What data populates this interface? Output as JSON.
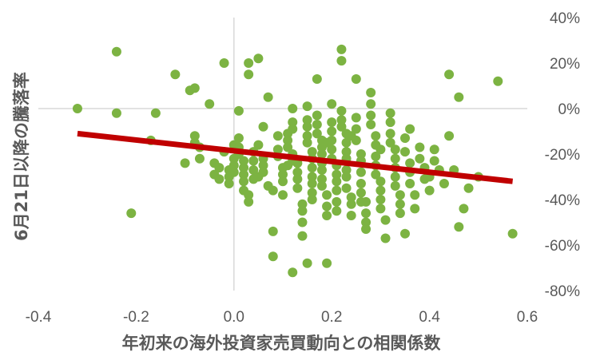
{
  "chart_data": {
    "type": "scatter",
    "xlabel": "年初来の海外投資家売買動向との相関係数",
    "ylabel": "6月21日以降の騰落率",
    "xlim": [
      -0.4,
      0.6
    ],
    "ylim": [
      -0.8,
      0.4
    ],
    "x_ticks": [
      "-0.4",
      "-0.2",
      "0.0",
      "0.2",
      "0.4",
      "0.6"
    ],
    "y_ticks": [
      "40%",
      "20%",
      "0%",
      "-20%",
      "-40%",
      "-60%",
      "-80%"
    ],
    "grid": false,
    "legend": "none",
    "colors": {
      "points": "#7cb342",
      "trend": "#c00000",
      "axis": "#d9d9d9"
    },
    "trend_line": {
      "x": [
        -0.32,
        0.57
      ],
      "y": [
        -0.11,
        -0.32
      ]
    },
    "points": [
      [
        -0.32,
        0.0
      ],
      [
        -0.24,
        0.25
      ],
      [
        -0.24,
        -0.02
      ],
      [
        -0.21,
        -0.46
      ],
      [
        -0.17,
        -0.14
      ],
      [
        -0.16,
        -0.02
      ],
      [
        -0.12,
        0.15
      ],
      [
        -0.1,
        -0.24
      ],
      [
        -0.09,
        0.08
      ],
      [
        -0.08,
        0.09
      ],
      [
        -0.08,
        -0.12
      ],
      [
        -0.08,
        -0.15
      ],
      [
        -0.07,
        -0.17
      ],
      [
        -0.07,
        -0.22
      ],
      [
        -0.05,
        0.02
      ],
      [
        -0.04,
        -0.24
      ],
      [
        -0.04,
        -0.29
      ],
      [
        -0.03,
        -0.26
      ],
      [
        -0.03,
        -0.31
      ],
      [
        -0.02,
        0.2
      ],
      [
        -0.02,
        -0.19
      ],
      [
        -0.01,
        -0.27
      ],
      [
        -0.01,
        -0.3
      ],
      [
        -0.01,
        -0.33
      ],
      [
        0.0,
        -0.16
      ],
      [
        0.0,
        -0.22
      ],
      [
        0.0,
        -0.25
      ],
      [
        0.0,
        -0.28
      ],
      [
        0.01,
        -0.01
      ],
      [
        0.01,
        -0.13
      ],
      [
        0.01,
        -0.17
      ],
      [
        0.01,
        -0.2
      ],
      [
        0.02,
        -0.23
      ],
      [
        0.02,
        -0.26
      ],
      [
        0.02,
        -0.29
      ],
      [
        0.02,
        -0.32
      ],
      [
        0.02,
        -0.36
      ],
      [
        0.03,
        0.15
      ],
      [
        0.03,
        0.2
      ],
      [
        0.03,
        -0.38
      ],
      [
        0.03,
        -0.41
      ],
      [
        0.04,
        -0.19
      ],
      [
        0.04,
        -0.23
      ],
      [
        0.04,
        -0.27
      ],
      [
        0.04,
        -0.31
      ],
      [
        0.05,
        0.22
      ],
      [
        0.05,
        -0.16
      ],
      [
        0.05,
        -0.3
      ],
      [
        0.06,
        -0.22
      ],
      [
        0.06,
        -0.25
      ],
      [
        0.06,
        -0.28
      ],
      [
        0.07,
        0.05
      ],
      [
        0.07,
        -0.34
      ],
      [
        0.08,
        -0.36
      ],
      [
        0.08,
        -0.54
      ],
      [
        0.08,
        -0.65
      ],
      [
        0.09,
        -0.18
      ],
      [
        0.09,
        -0.21
      ],
      [
        0.1,
        -0.26
      ],
      [
        0.1,
        -0.29
      ],
      [
        0.1,
        -0.32
      ],
      [
        0.1,
        -0.38
      ],
      [
        0.11,
        -0.11
      ],
      [
        0.11,
        -0.14
      ],
      [
        0.11,
        -0.17
      ],
      [
        0.12,
        0.0
      ],
      [
        0.12,
        -0.06
      ],
      [
        0.12,
        -0.09
      ],
      [
        0.12,
        -0.2
      ],
      [
        0.12,
        -0.23
      ],
      [
        0.13,
        -0.24
      ],
      [
        0.13,
        -0.28
      ],
      [
        0.13,
        -0.31
      ],
      [
        0.13,
        -0.35
      ],
      [
        0.14,
        -0.42
      ],
      [
        0.14,
        -0.45
      ],
      [
        0.14,
        -0.5
      ],
      [
        0.14,
        -0.56
      ],
      [
        0.15,
        0.01
      ],
      [
        0.15,
        -0.05
      ],
      [
        0.15,
        -0.08
      ],
      [
        0.15,
        -0.12
      ],
      [
        0.15,
        -0.15
      ],
      [
        0.16,
        -0.19
      ],
      [
        0.16,
        -0.22
      ],
      [
        0.16,
        -0.26
      ],
      [
        0.16,
        -0.3
      ],
      [
        0.16,
        -0.33
      ],
      [
        0.16,
        -0.37
      ],
      [
        0.16,
        -0.4
      ],
      [
        0.17,
        0.13
      ],
      [
        0.17,
        -0.03
      ],
      [
        0.17,
        -0.07
      ],
      [
        0.17,
        -0.11
      ],
      [
        0.18,
        -0.14
      ],
      [
        0.18,
        -0.17
      ],
      [
        0.18,
        -0.2
      ],
      [
        0.18,
        -0.24
      ],
      [
        0.18,
        -0.27
      ],
      [
        0.18,
        -0.31
      ],
      [
        0.18,
        -0.34
      ],
      [
        0.19,
        -0.38
      ],
      [
        0.19,
        -0.43
      ],
      [
        0.19,
        -0.47
      ],
      [
        0.19,
        -0.68
      ],
      [
        0.2,
        0.02
      ],
      [
        0.2,
        -0.06
      ],
      [
        0.2,
        -0.1
      ],
      [
        0.2,
        -0.14
      ],
      [
        0.2,
        -0.18
      ],
      [
        0.2,
        -0.22
      ],
      [
        0.21,
        -0.25
      ],
      [
        0.21,
        -0.29
      ],
      [
        0.21,
        -0.32
      ],
      [
        0.21,
        -0.36
      ],
      [
        0.21,
        -0.41
      ],
      [
        0.21,
        -0.45
      ],
      [
        0.22,
        0.21
      ],
      [
        0.22,
        0.26
      ],
      [
        0.22,
        -0.01
      ],
      [
        0.22,
        -0.05
      ],
      [
        0.22,
        -0.08
      ],
      [
        0.23,
        -0.11
      ],
      [
        0.23,
        -0.15
      ],
      [
        0.23,
        -0.19
      ],
      [
        0.23,
        -0.22
      ],
      [
        0.23,
        -0.27
      ],
      [
        0.23,
        -0.3
      ],
      [
        0.23,
        -0.35
      ],
      [
        0.24,
        -0.39
      ],
      [
        0.24,
        -0.42
      ],
      [
        0.24,
        -0.47
      ],
      [
        0.25,
        0.13
      ],
      [
        0.25,
        -0.04
      ],
      [
        0.25,
        -0.09
      ],
      [
        0.25,
        -0.14
      ],
      [
        0.26,
        -0.2
      ],
      [
        0.26,
        -0.23
      ],
      [
        0.26,
        -0.28
      ],
      [
        0.26,
        -0.33
      ],
      [
        0.26,
        -0.37
      ],
      [
        0.27,
        -0.41
      ],
      [
        0.27,
        -0.46
      ],
      [
        0.27,
        -0.5
      ],
      [
        0.27,
        -0.53
      ],
      [
        0.28,
        0.07
      ],
      [
        0.28,
        0.02
      ],
      [
        0.28,
        -0.03
      ],
      [
        0.28,
        -0.07
      ],
      [
        0.29,
        -0.12
      ],
      [
        0.29,
        -0.16
      ],
      [
        0.29,
        -0.21
      ],
      [
        0.29,
        -0.25
      ],
      [
        0.29,
        -0.29
      ],
      [
        0.3,
        -0.32
      ],
      [
        0.3,
        -0.36
      ],
      [
        0.3,
        -0.4
      ],
      [
        0.3,
        -0.44
      ],
      [
        0.31,
        -0.49
      ],
      [
        0.31,
        -0.57
      ],
      [
        0.32,
        -0.02
      ],
      [
        0.32,
        -0.06
      ],
      [
        0.32,
        -0.11
      ],
      [
        0.32,
        -0.15
      ],
      [
        0.33,
        -0.18
      ],
      [
        0.33,
        -0.22
      ],
      [
        0.33,
        -0.26
      ],
      [
        0.33,
        -0.3
      ],
      [
        0.33,
        -0.34
      ],
      [
        0.34,
        -0.38
      ],
      [
        0.34,
        -0.42
      ],
      [
        0.34,
        -0.46
      ],
      [
        0.35,
        -0.55
      ],
      [
        0.35,
        -0.13
      ],
      [
        0.35,
        -0.19
      ],
      [
        0.36,
        -0.24
      ],
      [
        0.36,
        -0.28
      ],
      [
        0.36,
        -0.33
      ],
      [
        0.37,
        -0.38
      ],
      [
        0.37,
        -0.44
      ],
      [
        0.38,
        -0.17
      ],
      [
        0.38,
        -0.22
      ],
      [
        0.39,
        -0.26
      ],
      [
        0.39,
        -0.31
      ],
      [
        0.4,
        -0.36
      ],
      [
        0.41,
        -0.18
      ],
      [
        0.41,
        -0.23
      ],
      [
        0.42,
        -0.27
      ],
      [
        0.43,
        -0.33
      ],
      [
        0.44,
        0.15
      ],
      [
        0.44,
        -0.12
      ],
      [
        0.45,
        -0.27
      ],
      [
        0.46,
        0.05
      ],
      [
        0.46,
        -0.52
      ],
      [
        0.47,
        -0.44
      ],
      [
        0.48,
        -0.35
      ],
      [
        0.5,
        -0.3
      ],
      [
        0.54,
        0.12
      ],
      [
        0.57,
        -0.55
      ],
      [
        0.26,
        -0.41
      ],
      [
        0.12,
        -0.72
      ],
      [
        0.15,
        -0.68
      ],
      [
        0.11,
        -0.25
      ],
      [
        0.19,
        -0.15
      ],
      [
        0.24,
        -0.12
      ],
      [
        0.3,
        -0.18
      ],
      [
        0.09,
        -0.12
      ],
      [
        0.06,
        -0.08
      ],
      [
        0.36,
        -0.09
      ],
      [
        0.4,
        -0.3
      ]
    ]
  }
}
